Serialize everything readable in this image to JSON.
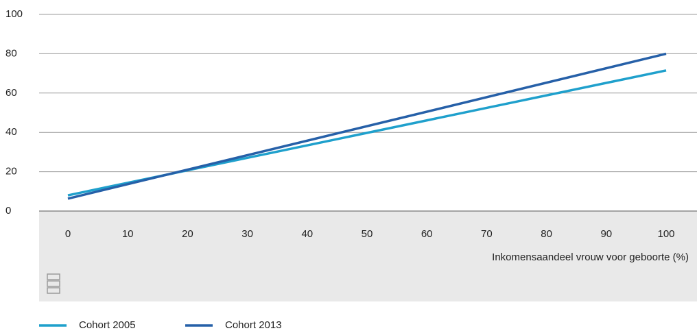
{
  "chart_data": {
    "type": "line",
    "x": [
      0,
      100
    ],
    "series": [
      {
        "name": "Cohort 2005",
        "color": "#1fa0cc",
        "values": [
          8,
          71.5
        ]
      },
      {
        "name": "Cohort 2013",
        "color": "#2660a8",
        "values": [
          6.3,
          80
        ]
      }
    ],
    "xlabel": "Inkomensaandeel vrouw voor geboorte (%)",
    "xlim": [
      0,
      100
    ],
    "xticks": [
      0,
      10,
      20,
      30,
      40,
      50,
      60,
      70,
      80,
      90,
      100
    ],
    "ylim": [
      0,
      100
    ],
    "yticks": [
      0,
      20,
      40,
      60,
      80,
      100
    ],
    "grid": true
  }
}
